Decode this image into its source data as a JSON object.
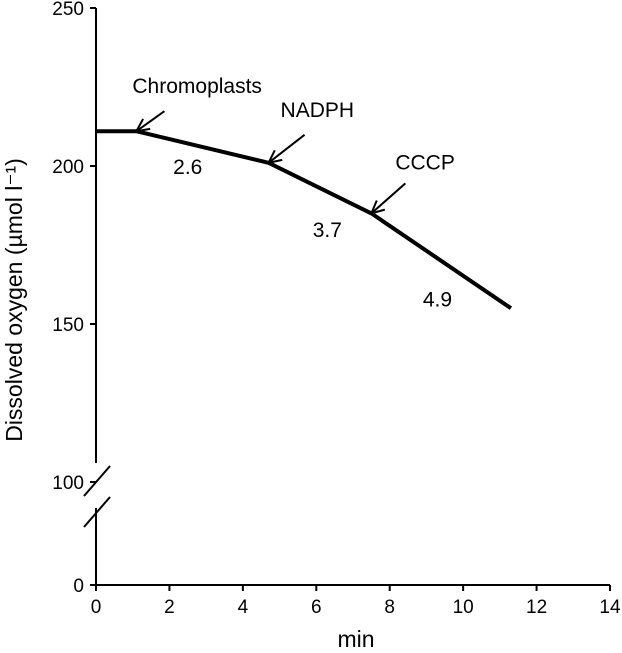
{
  "chart_data": {
    "type": "line",
    "xlabel": "min",
    "ylabel": "Dissolved oxygen (µmol l⁻¹)",
    "xlim": [
      0,
      14
    ],
    "x_ticks": [
      0,
      2,
      4,
      6,
      8,
      10,
      12,
      14
    ],
    "y_axis": {
      "segments": [
        {
          "range": [
            100,
            250
          ],
          "ticks": [
            100,
            150,
            200,
            250
          ]
        },
        {
          "range": [
            0,
            0
          ],
          "ticks": [
            0
          ]
        }
      ],
      "axis_break": "between 0 and 100"
    },
    "series": [
      {
        "x": [
          0,
          1.1,
          4.7,
          7.5,
          11.3
        ],
        "y": [
          211,
          211,
          201,
          185,
          155
        ]
      }
    ],
    "arrow_annotations": [
      {
        "text": "Chromoplasts",
        "x": 1.1,
        "y": 211
      },
      {
        "text": "NADPH",
        "x": 4.7,
        "y": 201
      },
      {
        "text": "CCCP",
        "x": 7.5,
        "y": 185
      }
    ],
    "rate_labels": [
      {
        "text": "2.6",
        "x": 2.5,
        "y": 200
      },
      {
        "text": "3.7",
        "x": 6.3,
        "y": 180
      },
      {
        "text": "4.9",
        "x": 9.3,
        "y": 158
      }
    ],
    "grid": false,
    "colors": {
      "line": "#000000",
      "axis": "#000000"
    }
  }
}
